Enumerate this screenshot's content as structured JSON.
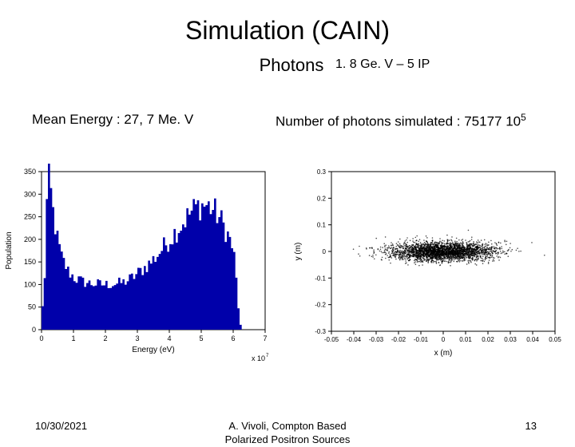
{
  "slide": {
    "title": "Simulation (CAIN)",
    "subtitle": "Photons",
    "param": "1. 8 Ge. V – 5 IP",
    "meanEnergyLabel": "Mean Energy :  27, 7 Me. V",
    "nPhotonsPrefix": "Number of photons simulated : 75177 10",
    "nPhotonsExp": "5"
  },
  "footer": {
    "date": "10/30/2021",
    "credit_line1": "A. Vivoli, Compton Based",
    "credit_line2": "Polarized Positron Sources",
    "pageNum": "13"
  },
  "histogram": {
    "type": "histogram",
    "xlabel": "Energy (eV)",
    "xexp": "x 10",
    "xexp_sup": "7",
    "ylabel": "Population",
    "xlim": [
      0,
      7
    ],
    "ylim": [
      0,
      350
    ],
    "xticks": [
      0,
      1,
      2,
      3,
      4,
      5,
      6,
      7
    ],
    "yticks": [
      0,
      50,
      100,
      150,
      200,
      250,
      300,
      350
    ],
    "background": "#ffffff",
    "axis_color": "#000000",
    "tick_fontsize": 9,
    "label_fontsize": 10,
    "bar_color": "#0000aa",
    "bars": [
      50,
      120,
      280,
      330,
      300,
      260,
      230,
      200,
      180,
      160,
      150,
      140,
      130,
      125,
      120,
      115,
      112,
      110,
      108,
      106,
      105,
      104,
      103,
      102,
      102,
      101,
      101,
      100,
      100,
      100,
      100,
      100,
      101,
      101,
      102,
      102,
      103,
      104,
      105,
      107,
      109,
      112,
      115,
      118,
      122,
      126,
      130,
      134,
      138,
      142,
      146,
      150,
      155,
      160,
      166,
      172,
      178,
      184,
      190,
      196,
      202,
      208,
      214,
      220,
      226,
      232,
      238,
      244,
      250,
      256,
      261,
      266,
      270,
      273,
      275,
      276,
      276,
      275,
      273,
      270,
      266,
      261,
      255,
      248,
      240,
      231,
      221,
      210,
      198,
      185,
      160,
      110,
      50,
      10,
      0,
      0,
      0,
      0,
      0,
      0,
      0,
      0,
      0,
      0,
      0
    ]
  },
  "scatter": {
    "type": "scatter",
    "xlabel": "x (m)",
    "ylabel": "y (m)",
    "xlim": [
      -0.05,
      0.05
    ],
    "ylim": [
      -0.3,
      0.3
    ],
    "xticks": [
      -0.05,
      -0.04,
      -0.03,
      -0.02,
      -0.01,
      0,
      0.01,
      0.02,
      0.03,
      0.04,
      0.05
    ],
    "yticks": [
      -0.3,
      -0.2,
      -0.1,
      0,
      0.1,
      0.2,
      0.3
    ],
    "background": "#ffffff",
    "axis_color": "#000000",
    "tick_fontsize": 8,
    "label_fontsize": 10,
    "point_color": "#000000",
    "sigma_x": 0.012,
    "sigma_y": 0.018,
    "n_points": 3000,
    "marker_size": 0.8
  }
}
